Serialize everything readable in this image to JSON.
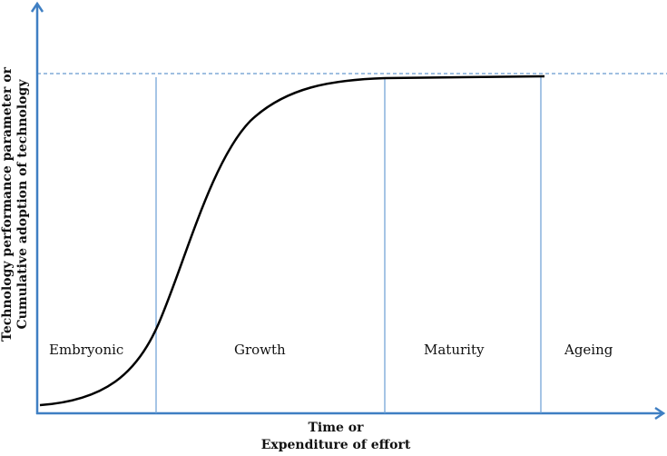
{
  "diagram": {
    "y_axis_label_line1": "Technology performance parameter or",
    "y_axis_label_line2": "Cumulative adoption of technology",
    "x_axis_label_line1": "Time or",
    "x_axis_label_line2": "Expenditure of effort",
    "stages": [
      {
        "label": "Embryonic"
      },
      {
        "label": "Growth"
      },
      {
        "label": "Maturity"
      },
      {
        "label": "Ageing"
      }
    ],
    "colors": {
      "axis": "#3f7fc3",
      "divider": "#6a9ed4",
      "curve": "#000000"
    }
  }
}
